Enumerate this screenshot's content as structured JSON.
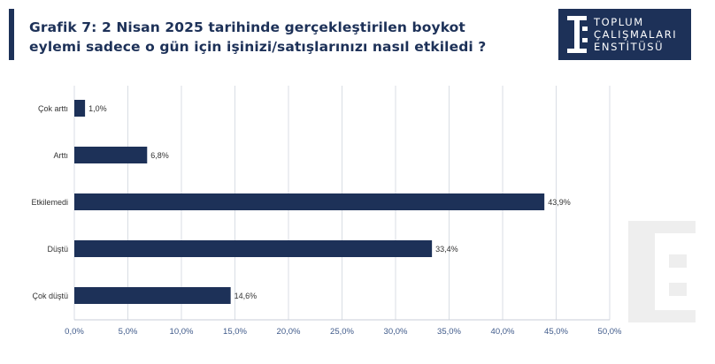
{
  "header": {
    "title_line1": "Grafik 7: 2 Nisan 2025 tarihinde gerçekleştirilen boykot",
    "title_line2": "eylemi sadece o gün için işinizi/satışlarınızı nasıl etkiledi ?"
  },
  "logo": {
    "line1": "TOPLUM",
    "line2": "ÇALIŞMALARI",
    "line3": "ENSTİTÜSÜ"
  },
  "colors": {
    "brand": "#1d3158",
    "bar": "#1d3158",
    "grid": "#d9dde4",
    "tick": "#3f5a8a"
  },
  "chart_data": {
    "type": "bar",
    "orientation": "horizontal",
    "categories": [
      "Çok arttı",
      "Arttı",
      "Etkilemedi",
      "Düştü",
      "Çok düştü"
    ],
    "values": [
      1.0,
      6.8,
      43.9,
      33.4,
      14.6
    ],
    "value_labels": [
      "1,0%",
      "6,8%",
      "43,9%",
      "33,4%",
      "14,6%"
    ],
    "xlim": [
      0,
      50
    ],
    "xticks": [
      "0,0%",
      "5,0%",
      "10,0%",
      "15,0%",
      "20,0%",
      "25,0%",
      "30,0%",
      "35,0%",
      "40,0%",
      "45,0%",
      "50,0%"
    ],
    "grid": true,
    "legend": "none"
  }
}
